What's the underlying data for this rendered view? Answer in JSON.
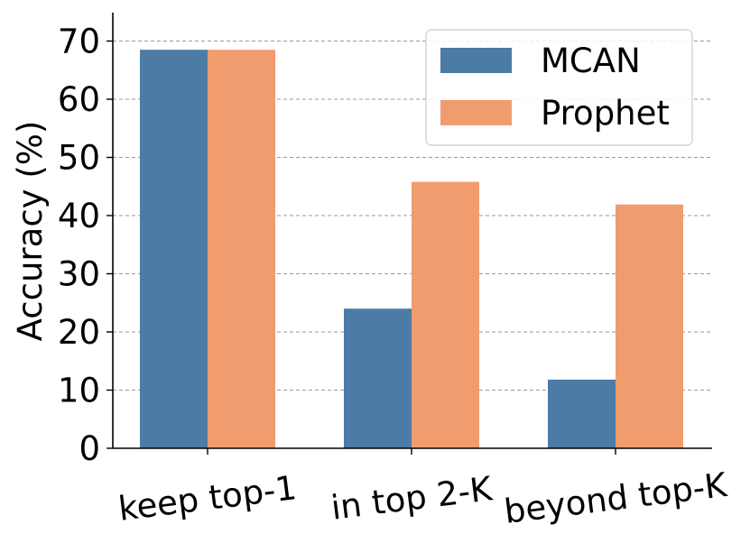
{
  "chart_data": {
    "type": "bar",
    "title": "",
    "xlabel": "",
    "ylabel": "Accuracy (%)",
    "categories": [
      "keep top-1",
      "in top 2-K",
      "beyond top-K"
    ],
    "series": [
      {
        "name": "MCAN",
        "values": [
          68.5,
          24.0,
          11.8
        ],
        "color": "#4c7ba6"
      },
      {
        "name": "Prophet",
        "values": [
          68.5,
          45.8,
          41.9
        ],
        "color": "#f19c6f"
      }
    ],
    "ylim": [
      0,
      75
    ],
    "yticks": [
      0,
      10,
      20,
      30,
      40,
      50,
      60,
      70
    ],
    "grid": "horizontal dashed",
    "legend_position": "top-right"
  }
}
